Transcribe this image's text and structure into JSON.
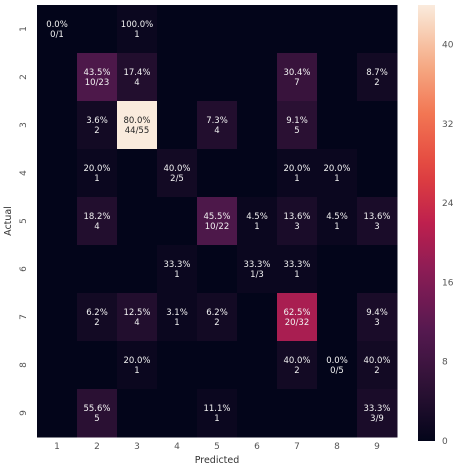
{
  "chart_data": {
    "type": "heatmap",
    "xlabel": "Predicted",
    "ylabel": "Actual",
    "x_categories": [
      "1",
      "2",
      "3",
      "4",
      "5",
      "6",
      "7",
      "8",
      "9"
    ],
    "y_categories": [
      "1",
      "2",
      "3",
      "4",
      "5",
      "6",
      "7",
      "8",
      "9"
    ],
    "values": [
      [
        0,
        null,
        1,
        null,
        null,
        null,
        null,
        null,
        null
      ],
      [
        null,
        10,
        4,
        null,
        null,
        null,
        7,
        null,
        2
      ],
      [
        null,
        2,
        44,
        null,
        4,
        null,
        5,
        null,
        null
      ],
      [
        null,
        1,
        null,
        2,
        null,
        null,
        1,
        1,
        null
      ],
      [
        null,
        4,
        null,
        null,
        10,
        1,
        3,
        1,
        3
      ],
      [
        null,
        null,
        null,
        1,
        null,
        1,
        1,
        null,
        null
      ],
      [
        null,
        2,
        4,
        1,
        2,
        null,
        20,
        null,
        3
      ],
      [
        null,
        null,
        1,
        null,
        null,
        null,
        2,
        0,
        2
      ],
      [
        null,
        5,
        null,
        null,
        1,
        null,
        null,
        null,
        3
      ]
    ],
    "annotations": [
      [
        "0.0%\n0/1",
        "",
        "100.0%\n1",
        "",
        "",
        "",
        "",
        "",
        ""
      ],
      [
        "",
        "43.5%\n10/23",
        "17.4%\n4",
        "",
        "",
        "",
        "30.4%\n7",
        "",
        "8.7%\n2"
      ],
      [
        "",
        "3.6%\n2",
        "80.0%\n44/55",
        "",
        "7.3%\n4",
        "",
        "9.1%\n5",
        "",
        ""
      ],
      [
        "",
        "20.0%\n1",
        "",
        "40.0%\n2/5",
        "",
        "",
        "20.0%\n1",
        "20.0%\n1",
        ""
      ],
      [
        "",
        "18.2%\n4",
        "",
        "",
        "45.5%\n10/22",
        "4.5%\n1",
        "13.6%\n3",
        "4.5%\n1",
        "13.6%\n3"
      ],
      [
        "",
        "",
        "",
        "33.3%\n1",
        "",
        "33.3%\n1/3",
        "33.3%\n1",
        "",
        ""
      ],
      [
        "",
        "6.2%\n2",
        "12.5%\n4",
        "3.1%\n1",
        "6.2%\n2",
        "",
        "62.5%\n20/32",
        "",
        "9.4%\n3"
      ],
      [
        "",
        "",
        "20.0%\n1",
        "",
        "",
        "",
        "40.0%\n2",
        "0.0%\n0/5",
        "40.0%\n2"
      ],
      [
        "",
        "55.6%\n5",
        "",
        "",
        "11.1%\n1",
        "",
        "",
        "",
        "33.3%\n3/9"
      ]
    ],
    "colorbar": {
      "min": 0,
      "max": 44,
      "ticks": [
        0,
        8,
        16,
        24,
        32,
        40
      ]
    },
    "colormap": "rocket",
    "empty_cell_color": "#03051a",
    "grid": false
  }
}
